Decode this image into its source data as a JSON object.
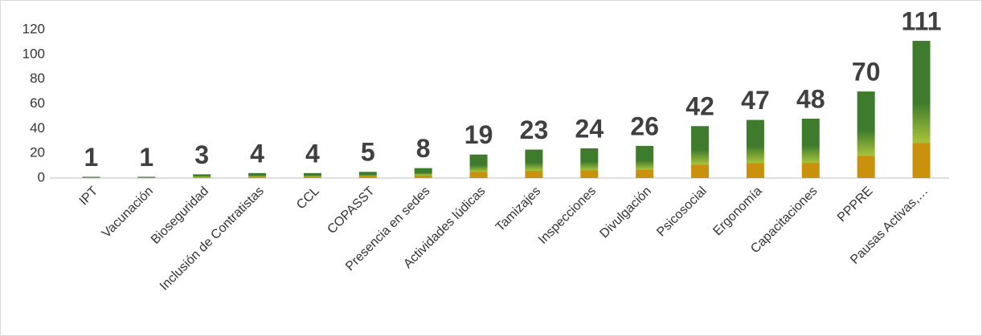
{
  "chart_data": {
    "type": "bar",
    "categories": [
      "IPT",
      "Vacunación",
      "Bioseguridad",
      "Inclusión de Contratistas",
      "CCL",
      "COPASST",
      "Presencia en sedes",
      "Actividades lúdicas",
      "Tamizajes",
      "Inspecciones",
      "Divulgación",
      "Psicosocial",
      "Ergonomía",
      "Capacitaciones",
      "PPPRE",
      "Pausas Activas,…"
    ],
    "values": [
      1,
      1,
      3,
      4,
      4,
      5,
      8,
      19,
      23,
      24,
      26,
      42,
      47,
      48,
      70,
      111
    ],
    "colors": [
      "#3e7b2d",
      "#a8c23a",
      "#c9910c"
    ],
    "ylim": [
      0,
      120
    ],
    "yticks": [
      0,
      20,
      40,
      60,
      80,
      100,
      120
    ],
    "grid": false
  }
}
